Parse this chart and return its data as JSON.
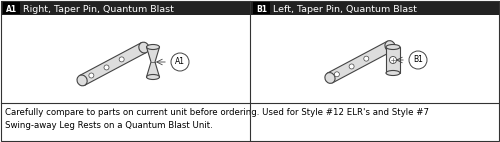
{
  "fig_width": 5.0,
  "fig_height": 1.42,
  "dpi": 100,
  "background_color": "#ffffff",
  "border_color": "#333333",
  "panel_a": {
    "label_box_text": "A1",
    "label_box_bg": "#000000",
    "label_box_color": "#ffffff",
    "title_text": "Right, Taper Pin, Quantum Blast",
    "title_bg": "#222222",
    "title_color": "#ffffff",
    "callout_text": "A1"
  },
  "panel_b": {
    "label_box_text": "B1",
    "label_box_bg": "#000000",
    "label_box_color": "#ffffff",
    "title_text": "Left, Taper Pin, Quantum Blast",
    "title_bg": "#222222",
    "title_color": "#ffffff",
    "callout_text": "B1"
  },
  "footer_text": "Carefully compare to parts on current unit before ordering. Used for Style #12 ELR's and Style #7\nSwing-away Leg Rests on a Quantum Blast Unit.",
  "footer_fontsize": 6.2,
  "title_fontsize": 6.8,
  "label_fontsize": 6.5,
  "part_color": "#dddddd",
  "part_edge_color": "#444444",
  "line_color": "#444444"
}
